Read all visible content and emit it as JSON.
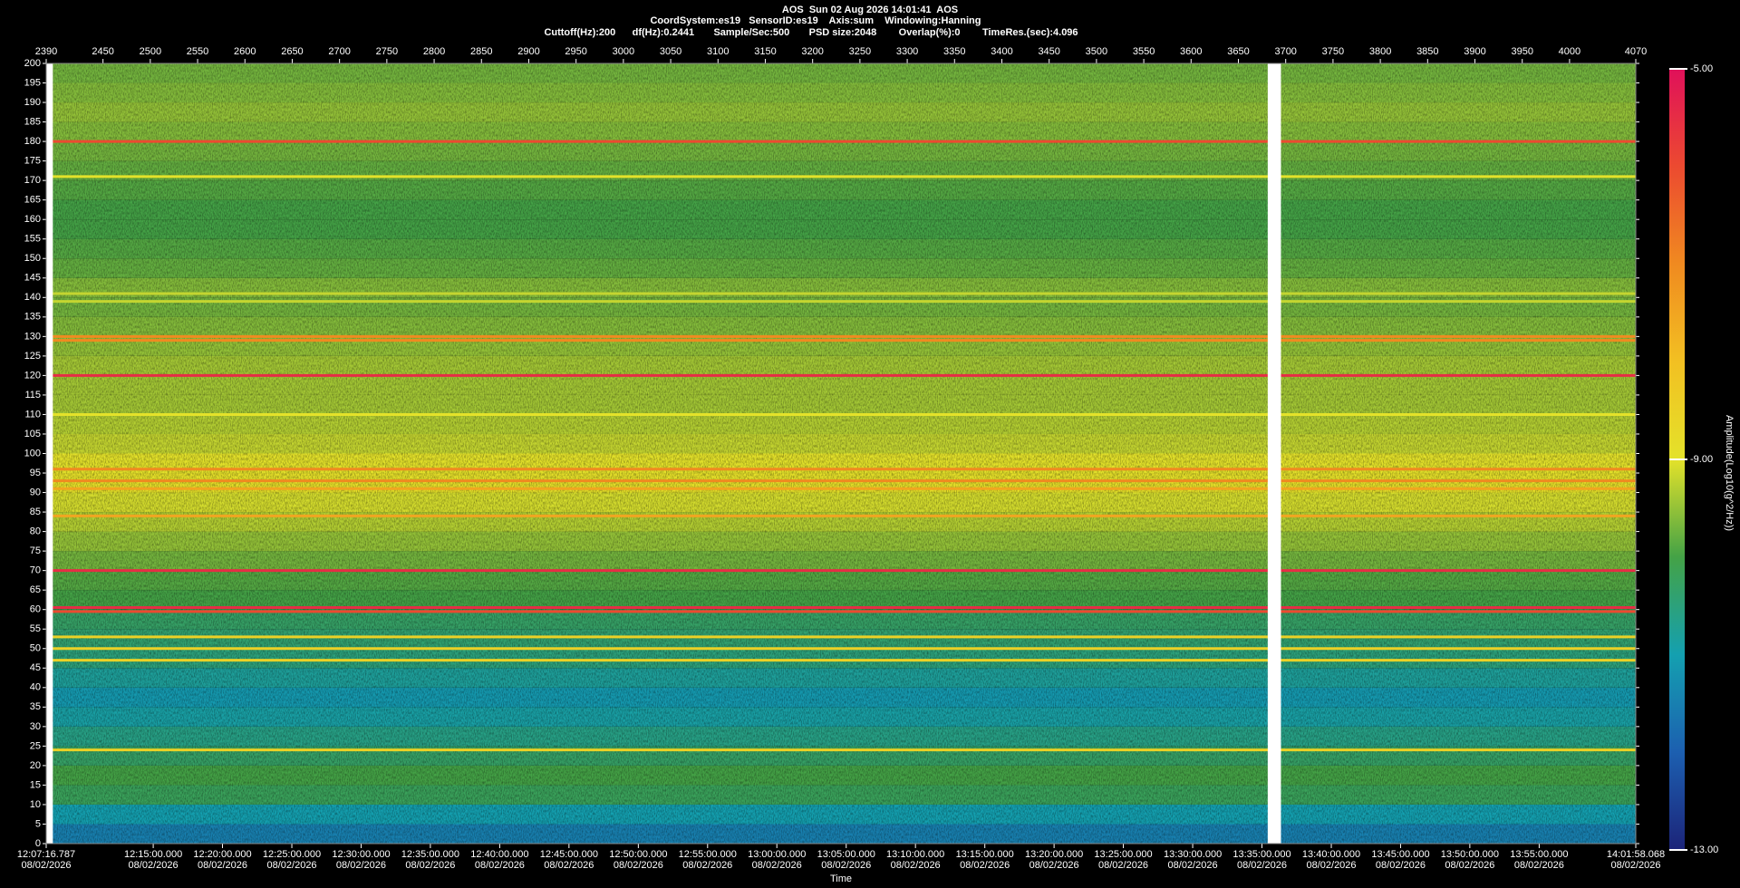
{
  "chart_data": {
    "type": "spectrogram",
    "title": "AOS  Sun 02 Aug 2026 14:01:41  AOS",
    "subtitle": "CoordSystem:es19   SensorID:es19    Axis:sum    Windowing:Hanning",
    "subtitle2": "Cuttoff(Hz):200      df(Hz):0.2441       Sample/Sec:500       PSD size:2048        Overlap(%):0        TimeRes.(sec):4.096",
    "x_label": "Time",
    "colorbar_label": "Amplitude(Log10(g^2/Hz))",
    "xlim": [
      2390,
      4070
    ],
    "xticks": [
      2390,
      2450,
      2500,
      2550,
      2600,
      2650,
      2700,
      2750,
      2800,
      2850,
      2900,
      2950,
      3000,
      3050,
      3100,
      3150,
      3200,
      3250,
      3300,
      3350,
      3400,
      3450,
      3500,
      3550,
      3600,
      3650,
      3700,
      3750,
      3800,
      3850,
      3900,
      3950,
      4000,
      4070
    ],
    "x2ticks": [
      {
        "value": 2390,
        "label": "12:07:16.787"
      },
      {
        "value": 2503.1,
        "label": "12:15:00.000"
      },
      {
        "value": 2576.3,
        "label": "12:20:00.000"
      },
      {
        "value": 2649.6,
        "label": "12:25:00.000"
      },
      {
        "value": 2722.8,
        "label": "12:30:00.000"
      },
      {
        "value": 2796.0,
        "label": "12:35:00.000"
      },
      {
        "value": 2869.3,
        "label": "12:40:00.000"
      },
      {
        "value": 2942.5,
        "label": "12:45:00.000"
      },
      {
        "value": 3015.8,
        "label": "12:50:00.000"
      },
      {
        "value": 3089.0,
        "label": "12:55:00.000"
      },
      {
        "value": 3162.2,
        "label": "13:00:00.000"
      },
      {
        "value": 3235.5,
        "label": "13:05:00.000"
      },
      {
        "value": 3308.7,
        "label": "13:10:00.000"
      },
      {
        "value": 3382.0,
        "label": "13:15:00.000"
      },
      {
        "value": 3455.2,
        "label": "13:20:00.000"
      },
      {
        "value": 3528.4,
        "label": "13:25:00.000"
      },
      {
        "value": 3601.7,
        "label": "13:30:00.000"
      },
      {
        "value": 3674.9,
        "label": "13:35:00.000"
      },
      {
        "value": 3748.2,
        "label": "13:40:00.000"
      },
      {
        "value": 3821.4,
        "label": "13:45:00.000"
      },
      {
        "value": 3894.6,
        "label": "13:50:00.000"
      },
      {
        "value": 3967.9,
        "label": "13:55:00.000"
      },
      {
        "value": 4070,
        "label": "14:01:58.068"
      }
    ],
    "x2tick_dates": [
      "08/02/2026",
      "08/02/2026",
      "08/02/2026",
      "08/02/2026",
      "08/02/2026",
      "08/02/2026",
      "08/02/2026",
      "08/02/2026",
      "08/02/2026",
      "08/02/2026",
      "08/02/2026",
      "08/02/2026",
      "08/02/2026",
      "08/02/2026",
      "08/02/2026",
      "08/02/2026",
      "08/02/2026",
      "08/02/2026",
      "08/02/2026",
      "08/02/2026",
      "08/02/2026",
      "08/02/2026",
      "08/02/2026"
    ],
    "ylim": [
      0,
      200
    ],
    "yticks": [
      0,
      5,
      10,
      15,
      20,
      25,
      30,
      35,
      40,
      45,
      50,
      55,
      60,
      65,
      70,
      75,
      80,
      85,
      90,
      95,
      100,
      105,
      110,
      115,
      120,
      125,
      130,
      135,
      140,
      145,
      150,
      155,
      160,
      165,
      170,
      175,
      180,
      185,
      190,
      195,
      200
    ],
    "clim": [
      -13,
      -5
    ],
    "cticks": [
      {
        "value": -5,
        "label": "-5.00"
      },
      {
        "value": -9,
        "label": "-9.00"
      },
      {
        "value": -13,
        "label": "-13.00"
      }
    ],
    "colormap": [
      "#1c2479",
      "#1c5fb0",
      "#14a0b0",
      "#44a246",
      "#e4e22a",
      "#f2c022",
      "#f08a20",
      "#ec4a30",
      "#e0105a"
    ],
    "band_edges": [
      0,
      5,
      10,
      15,
      20,
      25,
      30,
      35,
      40,
      45,
      50,
      55,
      60,
      65,
      70,
      75,
      80,
      85,
      90,
      95,
      100,
      105,
      110,
      115,
      120,
      125,
      130,
      135,
      140,
      145,
      150,
      155,
      160,
      165,
      170,
      175,
      180,
      185,
      190,
      195,
      200
    ],
    "band_amplitude": [
      -11.5,
      -11,
      -10.2,
      -10,
      -10.3,
      -10.6,
      -10.9,
      -11.1,
      -10.8,
      -10.5,
      -10.4,
      -10.3,
      -10,
      -9.9,
      -9.7,
      -9.5,
      -9.3,
      -9.1,
      -8.9,
      -9,
      -9.2,
      -9.3,
      -9.4,
      -9.4,
      -9.4,
      -9.5,
      -9.6,
      -9.7,
      -9.6,
      -9.8,
      -9.9,
      -10,
      -10,
      -9.9,
      -9.8,
      -9.7,
      -9.6,
      -9.5,
      -9.6,
      -9.7
    ],
    "tones": [
      {
        "freq": 180,
        "amplitude": -6
      },
      {
        "freq": 171,
        "amplitude": -9
      },
      {
        "freq": 141,
        "amplitude": -9.2
      },
      {
        "freq": 139,
        "amplitude": -9.2
      },
      {
        "freq": 130,
        "amplitude": -7
      },
      {
        "freq": 129,
        "amplitude": -7
      },
      {
        "freq": 120,
        "amplitude": -5.5
      },
      {
        "freq": 110,
        "amplitude": -9
      },
      {
        "freq": 96,
        "amplitude": -7
      },
      {
        "freq": 93,
        "amplitude": -7
      },
      {
        "freq": 91,
        "amplitude": -7.5
      },
      {
        "freq": 84,
        "amplitude": -7.5
      },
      {
        "freq": 70,
        "amplitude": -5.5
      },
      {
        "freq": 60.5,
        "amplitude": -5.5
      },
      {
        "freq": 59.5,
        "amplitude": -6
      },
      {
        "freq": 53,
        "amplitude": -8.5
      },
      {
        "freq": 50,
        "amplitude": -8.5
      },
      {
        "freq": 47,
        "amplitude": -8.5
      },
      {
        "freq": 24,
        "amplitude": -8.5
      }
    ],
    "gaps": [
      [
        2390,
        2397
      ],
      [
        3681,
        3695
      ]
    ]
  }
}
